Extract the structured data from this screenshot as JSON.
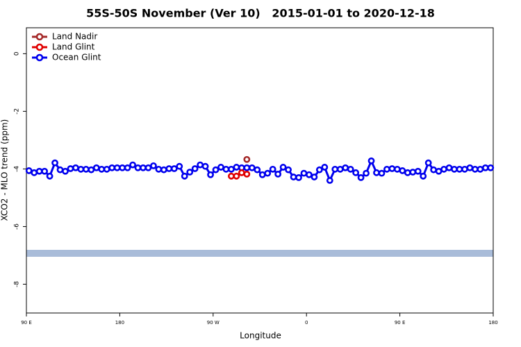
{
  "chart_data": {
    "type": "line",
    "title": "55S-50S November (Ver 10)   2015-01-01 to 2020-12-18",
    "x_label": "Longitude",
    "y_label": "XCO2 - MLO trend (ppm)",
    "xlim": [
      90,
      540
    ],
    "xticks": [
      {
        "value": 90,
        "label": "90 E"
      },
      180,
      {
        "value": 270,
        "label": "90 W"
      },
      {
        "value": 360,
        "label": "0"
      },
      {
        "value": 450,
        "label": "90 E"
      },
      {
        "value": 540,
        "label": "180"
      }
    ],
    "ylim": [
      -9,
      0.9
    ],
    "yticks": [
      -8,
      -6,
      -4,
      -2,
      0
    ],
    "legend": "top-left",
    "series": [
      {
        "name": "Land Nadir",
        "color": "#a52a2a",
        "x": [
          302.5
        ],
        "values": [
          -3.67
        ]
      },
      {
        "name": "Land Glint",
        "color": "#e00000",
        "x": [
          287.5,
          292.5,
          297.5,
          302.5
        ],
        "values": [
          -4.25,
          -4.25,
          -4.13,
          -4.18
        ]
      },
      {
        "name": "Ocean Glint",
        "color": "#0000ee",
        "x": [
          92.5,
          97.5,
          102.5,
          107.5,
          112.5,
          117.5,
          122.5,
          127.5,
          132.5,
          137.5,
          142.5,
          147.5,
          152.5,
          157.5,
          162.5,
          167.5,
          172.5,
          177.5,
          182.5,
          187.5,
          192.5,
          197.5,
          202.5,
          207.5,
          212.5,
          217.5,
          222.5,
          227.5,
          232.5,
          237.5,
          242.5,
          247.5,
          252.5,
          257.5,
          262.5,
          267.5,
          272.5,
          277.5,
          282.5,
          287.5,
          292.5,
          297.5,
          302.5,
          307.5,
          312.5,
          317.5,
          322.5,
          327.5,
          332.5,
          337.5,
          342.5,
          347.5,
          352.5,
          357.5,
          362.5,
          367.5,
          372.5,
          377.5,
          382.5,
          387.5,
          392.5,
          397.5,
          402.5,
          407.5,
          412.5,
          417.5,
          422.5,
          427.5,
          432.5,
          437.5,
          442.5,
          447.5,
          452.5,
          457.5,
          462.5,
          467.5,
          472.5,
          477.5,
          482.5,
          487.5,
          492.5,
          497.5,
          502.5,
          507.5,
          512.5,
          517.5,
          522.5,
          527.5,
          532.5,
          537.5
        ],
        "values": [
          -4.06,
          -4.13,
          -4.08,
          -4.08,
          -4.25,
          -3.79,
          -4.03,
          -4.08,
          -3.99,
          -3.96,
          -4.01,
          -4.01,
          -4.03,
          -3.96,
          -4.01,
          -4.01,
          -3.96,
          -3.96,
          -3.96,
          -3.96,
          -3.86,
          -3.96,
          -3.96,
          -3.96,
          -3.89,
          -4.01,
          -4.03,
          -3.99,
          -3.99,
          -3.91,
          -4.25,
          -4.11,
          -3.99,
          -3.86,
          -3.91,
          -4.2,
          -4.03,
          -3.94,
          -4.01,
          -4.01,
          -3.94,
          -3.96,
          -3.96,
          -3.96,
          -4.03,
          -4.2,
          -4.15,
          -4.01,
          -4.18,
          -3.94,
          -4.03,
          -4.28,
          -4.3,
          -4.15,
          -4.2,
          -4.28,
          -4.03,
          -3.94,
          -4.4,
          -4.01,
          -4.01,
          -3.96,
          -4.01,
          -4.13,
          -4.3,
          -4.15,
          -3.72,
          -4.13,
          -4.15,
          -4.01,
          -3.99,
          -4.01,
          -4.06,
          -4.13,
          -4.11,
          -4.08,
          -4.25,
          -3.79,
          -4.03,
          -4.08,
          -4.01,
          -3.96,
          -4.01,
          -4.01,
          -4.01,
          -3.96,
          -4.01,
          -4.01,
          -3.96,
          -3.96
        ]
      }
    ]
  }
}
